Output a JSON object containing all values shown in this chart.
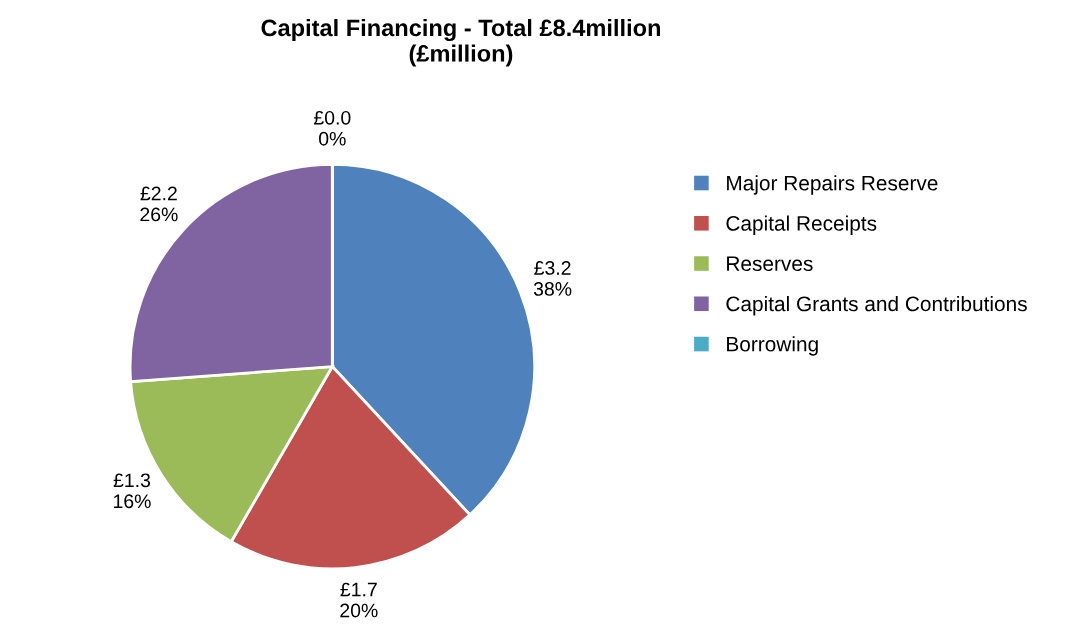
{
  "chart_data": {
    "type": "pie",
    "title": "Capital Financing - Total £8.4million\n(£million)",
    "categories": [
      "Major Repairs Reserve",
      "Capital Receipts",
      "Reserves",
      "Capital Grants and Contributions",
      "Borrowing"
    ],
    "values": [
      3.2,
      1.7,
      1.3,
      2.2,
      0.0
    ],
    "colors": [
      "#4f81bd",
      "#c0504d",
      "#9bbb59",
      "#8064a2",
      "#4bacc6"
    ],
    "value_labels": [
      "£3.2\n38%",
      "£1.7\n20%",
      "£1.3\n16%",
      "£2.2\n26%",
      "£0.0\n0%"
    ],
    "legend": "right"
  }
}
